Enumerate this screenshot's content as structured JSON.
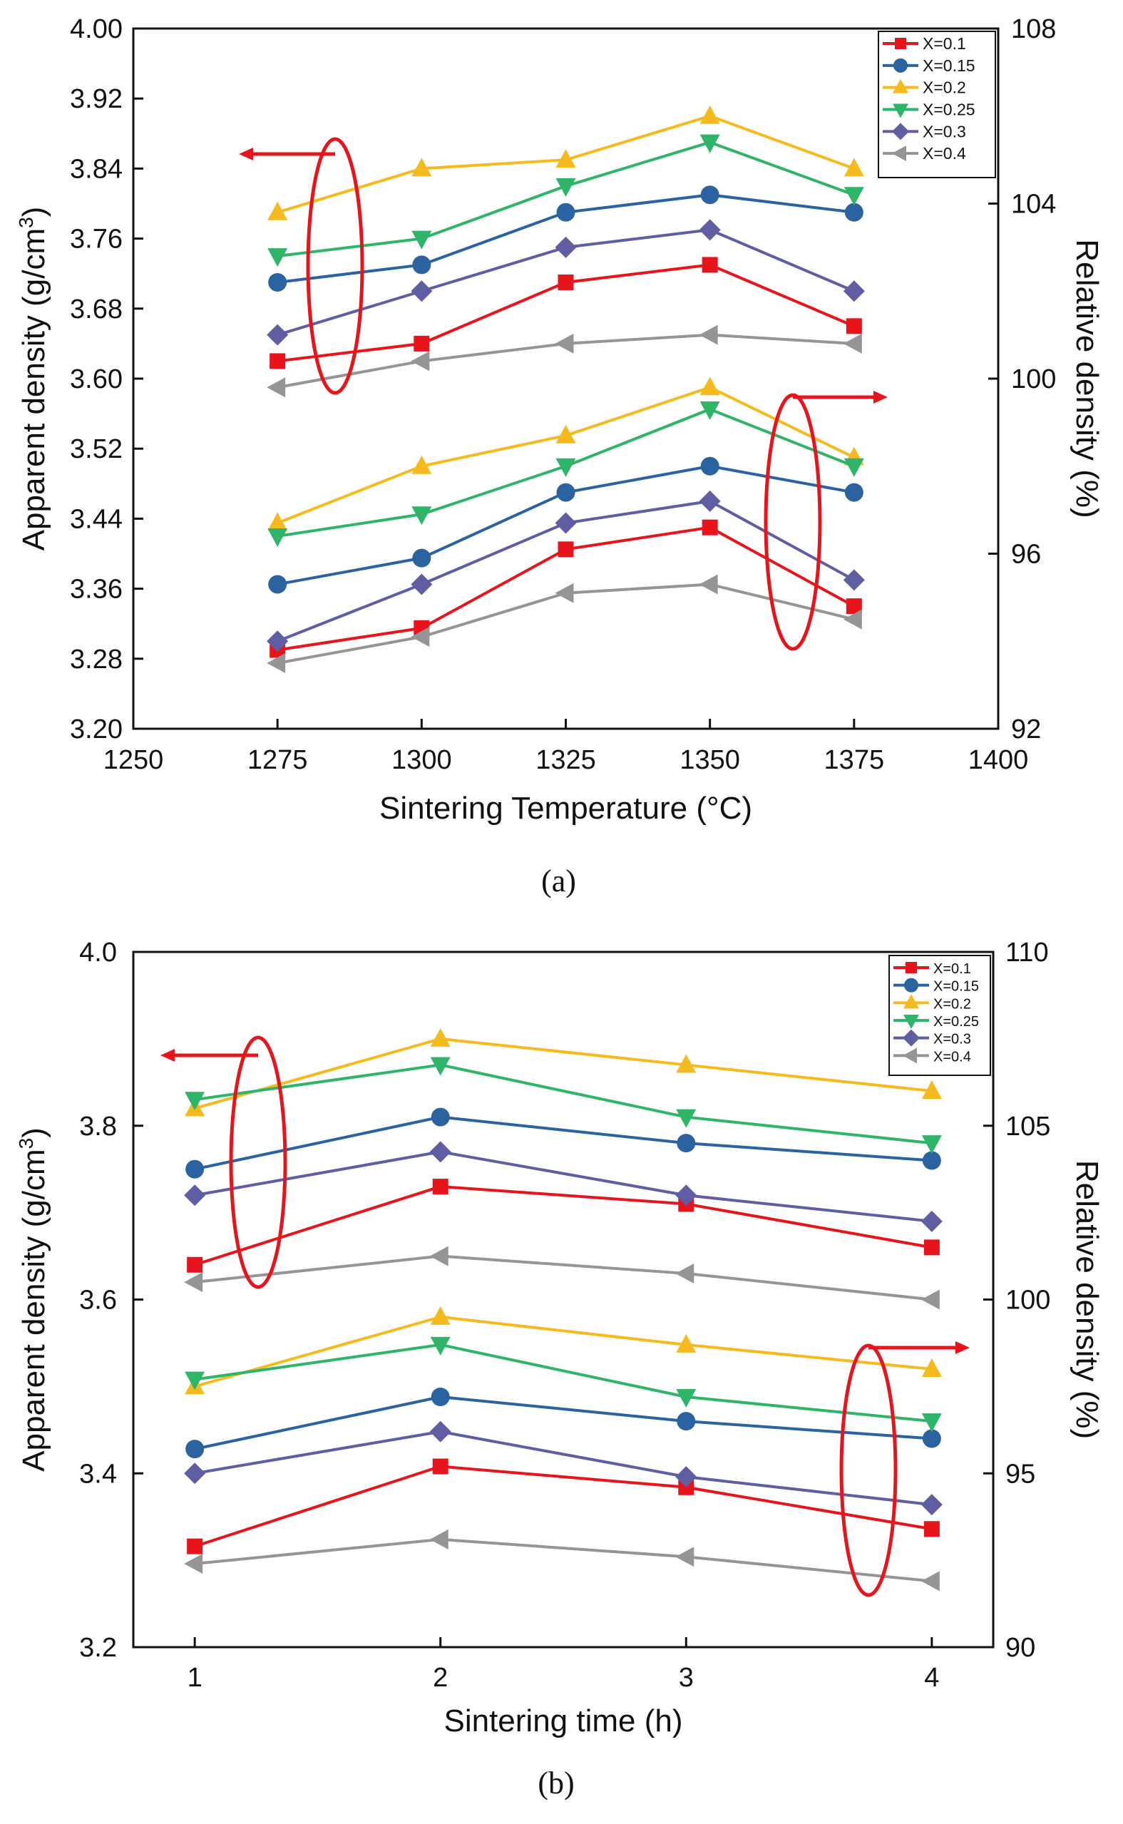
{
  "chart_data": [
    {
      "type": "line",
      "panel_caption": "(a)",
      "title": "",
      "xlabel": "Sintering Temperature (°C)",
      "ylabel_left": "Apparent density (g/cm³)",
      "ylabel_left_parts": {
        "main": "Apparent density (g/cm",
        "sup": "3",
        "end": ")"
      },
      "ylabel_right": "Relative density (%)",
      "xlim": [
        1250,
        1400
      ],
      "ylim_left": [
        3.2,
        4.0
      ],
      "ylim_right": [
        92,
        108
      ],
      "x_ticks": [
        "1250",
        "1275",
        "1300",
        "1325",
        "1350",
        "1375",
        "1400"
      ],
      "x_tick_values": [
        1250,
        1275,
        1300,
        1325,
        1350,
        1375,
        1400
      ],
      "y_left_ticks": [
        "3.20",
        "3.28",
        "3.36",
        "3.44",
        "3.52",
        "3.60",
        "3.68",
        "3.76",
        "3.84",
        "3.92",
        "4.00"
      ],
      "y_left_tick_values": [
        3.2,
        3.28,
        3.36,
        3.44,
        3.52,
        3.6,
        3.68,
        3.76,
        3.84,
        3.92,
        4.0
      ],
      "y_right_ticks": [
        "92",
        "96",
        "100",
        "104",
        "108"
      ],
      "y_right_tick_values": [
        92,
        96,
        100,
        104,
        108
      ],
      "grid": false,
      "legend_position": "top-right",
      "x": [
        1275,
        1300,
        1325,
        1350,
        1375
      ],
      "series": [
        {
          "name": "X=0.1",
          "color": "#e8141c",
          "marker": "square",
          "apparent_density": [
            3.62,
            3.64,
            3.71,
            3.73,
            3.66
          ],
          "relative_density": [
            93.8,
            94.3,
            96.1,
            96.6,
            94.8
          ]
        },
        {
          "name": "X=0.15",
          "color": "#2b62a0",
          "marker": "circle",
          "apparent_density": [
            3.71,
            3.73,
            3.79,
            3.81,
            3.79
          ],
          "relative_density": [
            95.3,
            95.9,
            97.4,
            98.0,
            97.4
          ]
        },
        {
          "name": "X=0.2",
          "color": "#f5bb1e",
          "marker": "triangle-up",
          "apparent_density": [
            3.79,
            3.84,
            3.85,
            3.9,
            3.84
          ],
          "relative_density": [
            96.7,
            98.0,
            98.7,
            99.8,
            98.2
          ]
        },
        {
          "name": "X=0.25",
          "color": "#2fb56a",
          "marker": "triangle-down",
          "apparent_density": [
            3.74,
            3.76,
            3.82,
            3.87,
            3.81
          ],
          "relative_density": [
            96.4,
            96.9,
            98.0,
            99.3,
            98.0
          ]
        },
        {
          "name": "X=0.3",
          "color": "#5f5ea3",
          "marker": "diamond",
          "apparent_density": [
            3.65,
            3.7,
            3.75,
            3.77,
            3.7
          ],
          "relative_density": [
            94.0,
            95.3,
            96.7,
            97.2,
            95.4
          ]
        },
        {
          "name": "X=0.4",
          "color": "#959595",
          "marker": "triangle-left",
          "apparent_density": [
            3.59,
            3.62,
            3.64,
            3.65,
            3.64
          ],
          "relative_density": [
            93.5,
            94.1,
            95.1,
            95.3,
            94.5
          ]
        }
      ],
      "annotations": [
        {
          "type": "ellipse-arrow",
          "points_to": "left axis",
          "group": "apparent_density",
          "at_x": 1285,
          "y_center": 3.72
        },
        {
          "type": "ellipse-arrow",
          "points_to": "right axis",
          "group": "relative_density",
          "at_x": 1362,
          "y_center": 3.46
        }
      ]
    },
    {
      "type": "line",
      "panel_caption": "(b)",
      "title": "",
      "xlabel": "Sintering time (h)",
      "ylabel_left": "Apparent density (g/cm³)",
      "ylabel_left_parts": {
        "main": "Apparent density (g/cm",
        "sup": "3",
        "end": ")"
      },
      "ylabel_right": "Relative density (%)",
      "xlim": [
        0.75,
        4.25
      ],
      "ylim_left": [
        3.2,
        4.0
      ],
      "ylim_right": [
        90,
        110
      ],
      "x_ticks": [
        "1",
        "2",
        "3",
        "4"
      ],
      "x_tick_values": [
        1,
        2,
        3,
        4
      ],
      "y_left_ticks": [
        "3.2",
        "3.4",
        "3.6",
        "3.8",
        "4.0"
      ],
      "y_left_tick_values": [
        3.2,
        3.4,
        3.6,
        3.8,
        4.0
      ],
      "y_right_ticks": [
        "90",
        "95",
        "100",
        "105",
        "110"
      ],
      "y_right_tick_values": [
        90,
        95,
        100,
        105,
        110
      ],
      "grid": false,
      "legend_position": "top-right",
      "x": [
        1,
        2,
        3,
        4
      ],
      "series": [
        {
          "name": "X=0.1",
          "color": "#e8141c",
          "marker": "square",
          "apparent_density": [
            3.64,
            3.73,
            3.71,
            3.66
          ],
          "relative_density": [
            92.9,
            95.2,
            94.6,
            93.4
          ]
        },
        {
          "name": "X=0.15",
          "color": "#2b62a0",
          "marker": "circle",
          "apparent_density": [
            3.75,
            3.81,
            3.78,
            3.76
          ],
          "relative_density": [
            95.7,
            97.2,
            96.5,
            96.0
          ]
        },
        {
          "name": "X=0.2",
          "color": "#f5bb1e",
          "marker": "triangle-up",
          "apparent_density": [
            3.82,
            3.9,
            3.87,
            3.84
          ],
          "relative_density": [
            97.5,
            99.5,
            98.7,
            98.0
          ]
        },
        {
          "name": "X=0.25",
          "color": "#2fb56a",
          "marker": "triangle-down",
          "apparent_density": [
            3.83,
            3.87,
            3.81,
            3.78
          ],
          "relative_density": [
            97.7,
            98.7,
            97.2,
            96.5
          ]
        },
        {
          "name": "X=0.3",
          "color": "#5f5ea3",
          "marker": "diamond",
          "apparent_density": [
            3.72,
            3.77,
            3.72,
            3.69
          ],
          "relative_density": [
            95.0,
            96.2,
            94.9,
            94.1
          ]
        },
        {
          "name": "X=0.4",
          "color": "#959595",
          "marker": "triangle-left",
          "apparent_density": [
            3.62,
            3.65,
            3.63,
            3.6
          ],
          "relative_density": [
            92.4,
            93.1,
            92.6,
            91.9
          ]
        }
      ],
      "annotations": [
        {
          "type": "ellipse-arrow",
          "points_to": "left axis",
          "group": "apparent_density",
          "at_x": 1.3,
          "y_center": 3.72
        },
        {
          "type": "ellipse-arrow",
          "points_to": "right axis",
          "group": "relative_density",
          "at_x": 3.75,
          "y_center": 3.37
        }
      ]
    }
  ]
}
